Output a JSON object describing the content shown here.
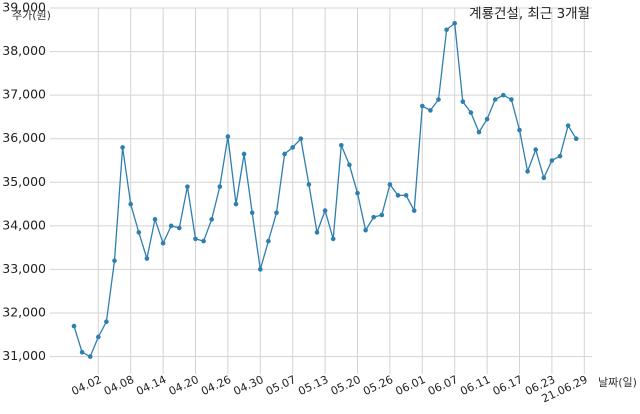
{
  "chart_data": {
    "type": "line",
    "title": "계룡건설, 최근 3개월",
    "ylabel": "주가(원)",
    "xlabel": "날짜(일)",
    "ylim": [
      30600,
      39000
    ],
    "yticks": [
      31000,
      32000,
      33000,
      34000,
      35000,
      36000,
      37000,
      38000,
      39000
    ],
    "ytick_labels": [
      "31,000",
      "32,000",
      "33,000",
      "34,000",
      "35,000",
      "36,000",
      "37,000",
      "38,000",
      "39,000"
    ],
    "xtick_labels": [
      "04.02",
      "04.08",
      "04.14",
      "04.20",
      "04.26",
      "04.30",
      "05.07",
      "05.13",
      "05.20",
      "05.26",
      "06.01",
      "06.07",
      "06.11",
      "06.17",
      "06.23",
      "21.06.29"
    ],
    "xtick_index": [
      3,
      7,
      11,
      15,
      19,
      23,
      27,
      31,
      35,
      39,
      43,
      47,
      51,
      55,
      59,
      63
    ],
    "grid": true,
    "color": "#2e7fb0",
    "values": [
      31700,
      31100,
      31000,
      31450,
      31800,
      33200,
      35800,
      34500,
      33850,
      33250,
      34150,
      33600,
      34000,
      33950,
      34900,
      33700,
      33650,
      34150,
      34900,
      36050,
      34500,
      35650,
      34300,
      33000,
      33650,
      34300,
      35650,
      35800,
      36000,
      34950,
      33850,
      34350,
      33700,
      35850,
      35400,
      34750,
      33900,
      34200,
      34250,
      34950,
      34700,
      34700,
      34350,
      36750,
      36650,
      36900,
      38500,
      38650,
      36850,
      36600,
      36150,
      36450,
      36900,
      37000,
      36900,
      36200,
      35250,
      35750,
      35100,
      35500,
      35600,
      36300,
      36000
    ]
  }
}
